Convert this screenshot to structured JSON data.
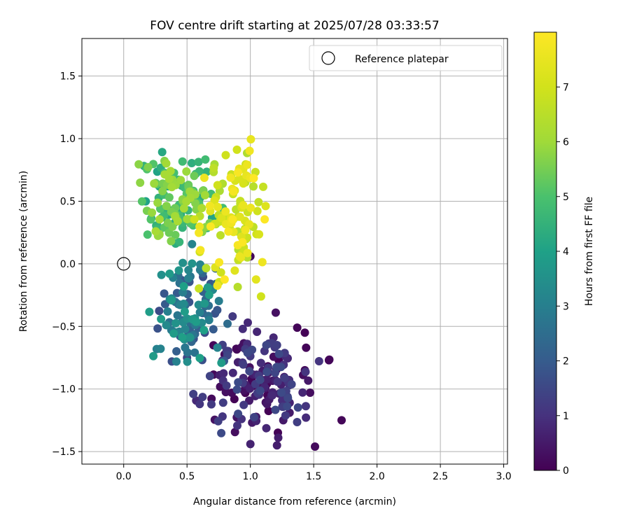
{
  "chart_data": {
    "type": "scatter",
    "title": "FOV centre drift starting at 2025/07/28 03:33:57",
    "xlabel": "Angular distance from reference (arcmin)",
    "ylabel": "Rotation from reference (arcmin)",
    "xlim": [
      -0.33,
      3.03
    ],
    "ylim": [
      -1.6,
      1.8
    ],
    "xticks": [
      0.0,
      0.5,
      1.0,
      1.5,
      2.0,
      2.5,
      3.0
    ],
    "xtick_labels": [
      "0.0",
      "0.5",
      "1.0",
      "1.5",
      "2.0",
      "2.5",
      "3.0"
    ],
    "yticks": [
      -1.5,
      -1.0,
      -0.5,
      0.0,
      0.5,
      1.0,
      1.5
    ],
    "ytick_labels": [
      "−1.5",
      "−1.0",
      "−0.5",
      "0.0",
      "0.5",
      "1.0",
      "1.5"
    ],
    "grid": true,
    "legend": {
      "position": "top-right",
      "entries": [
        {
          "label": "Reference platepar",
          "marker": "open-circle"
        }
      ]
    },
    "reference_point": {
      "x": 0.0,
      "y": 0.0
    },
    "colorbar": {
      "label": "Hours from first FF file",
      "colormap": "viridis",
      "range": [
        0,
        8
      ],
      "ticks": [
        0,
        1,
        2,
        3,
        4,
        5,
        6,
        7
      ],
      "tick_labels": [
        "0",
        "1",
        "2",
        "3",
        "4",
        "5",
        "6",
        "7"
      ]
    },
    "clusters": [
      {
        "hours": [
          0.0,
          1.6
        ],
        "x_range": [
          0.45,
          1.72
        ],
        "y_range": [
          -1.46,
          -0.45
        ],
        "count": 150
      },
      {
        "hours": [
          1.6,
          4.0
        ],
        "x_range": [
          0.1,
          0.9
        ],
        "y_range": [
          -1.05,
          0.25
        ],
        "count": 110
      },
      {
        "hours": [
          4.0,
          6.2
        ],
        "x_range": [
          0.0,
          0.85
        ],
        "y_range": [
          0.0,
          1.05
        ],
        "count": 140
      },
      {
        "hours": [
          6.2,
          8.0
        ],
        "x_range": [
          0.45,
          1.25
        ],
        "y_range": [
          -0.45,
          1.2
        ],
        "count": 110
      }
    ],
    "points": [
      {
        "x": 1.72,
        "y": -1.25,
        "h": 0.1
      },
      {
        "x": 1.62,
        "y": -0.77,
        "h": 0.05
      },
      {
        "x": 1.51,
        "y": -1.46,
        "h": 0.2
      },
      {
        "x": 1.43,
        "y": -0.55,
        "h": 0.05
      },
      {
        "x": 1.44,
        "y": -0.67,
        "h": 0.1
      },
      {
        "x": 1.37,
        "y": -0.51,
        "h": 0.1
      },
      {
        "x": 1.43,
        "y": -0.85,
        "h": 0.2
      },
      {
        "x": 1.2,
        "y": -0.39,
        "h": 0.3
      },
      {
        "x": 1.0,
        "y": 0.06,
        "h": 0.1
      },
      {
        "x": 1.26,
        "y": -1.25,
        "h": 0.5
      },
      {
        "x": 1.21,
        "y": -1.45,
        "h": 0.6
      },
      {
        "x": 1.22,
        "y": -1.39,
        "h": 0.6
      },
      {
        "x": 1.0,
        "y": -1.44,
        "h": 0.7
      },
      {
        "x": 0.93,
        "y": -1.24,
        "h": 1.0
      },
      {
        "x": 0.78,
        "y": -1.22,
        "h": 1.1
      },
      {
        "x": 1.31,
        "y": -1.11,
        "h": 0.7
      },
      {
        "x": 0.94,
        "y": -0.52,
        "h": 0.9
      },
      {
        "x": 0.86,
        "y": -0.42,
        "h": 1.2
      },
      {
        "x": 0.98,
        "y": -0.47,
        "h": 0.8
      },
      {
        "x": 0.6,
        "y": -1.12,
        "h": 1.1
      },
      {
        "x": 0.55,
        "y": -1.04,
        "h": 1.3
      },
      {
        "x": 0.38,
        "y": -0.78,
        "h": 1.7
      },
      {
        "x": 0.5,
        "y": -0.75,
        "h": 1.4
      },
      {
        "x": 0.64,
        "y": -0.55,
        "h": 1.6
      }
    ]
  }
}
